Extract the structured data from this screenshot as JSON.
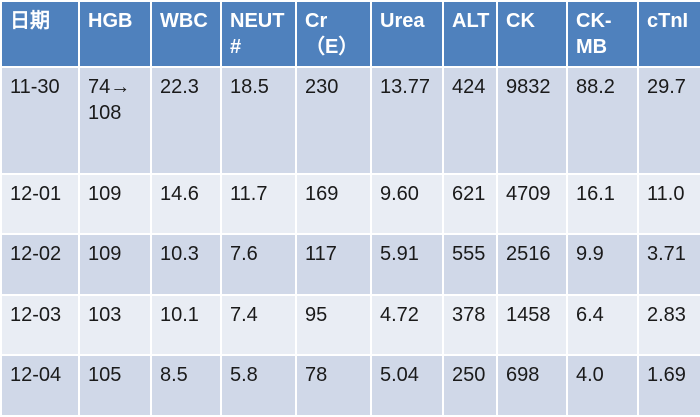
{
  "table": {
    "header": [
      "日期",
      "HGB",
      "WBC",
      "NEUT\n#",
      "Cr（E）",
      "Urea",
      "ALT",
      "CK",
      "CK-\nMB",
      "cTnI"
    ],
    "rows": [
      [
        "11-30",
        "74→\n108",
        "22.3",
        "18.5",
        "230",
        "13.77",
        "424",
        "9832",
        "88.2",
        "29.7"
      ],
      [
        "12-01",
        "109",
        "14.6",
        "11.7",
        "169",
        "9.60",
        "621",
        "4709",
        "16.1",
        "11.0"
      ],
      [
        "12-02",
        "109",
        "10.3",
        "7.6",
        "117",
        "5.91",
        "555",
        "2516",
        "9.9",
        "3.71"
      ],
      [
        "12-03",
        "103",
        "10.1",
        "7.4",
        "95",
        "4.72",
        "378",
        "1458",
        "6.4",
        "2.83"
      ],
      [
        "12-04",
        "105",
        "8.5",
        "5.8",
        "78",
        "5.04",
        "250",
        "698",
        "4.0",
        "1.69"
      ]
    ]
  }
}
